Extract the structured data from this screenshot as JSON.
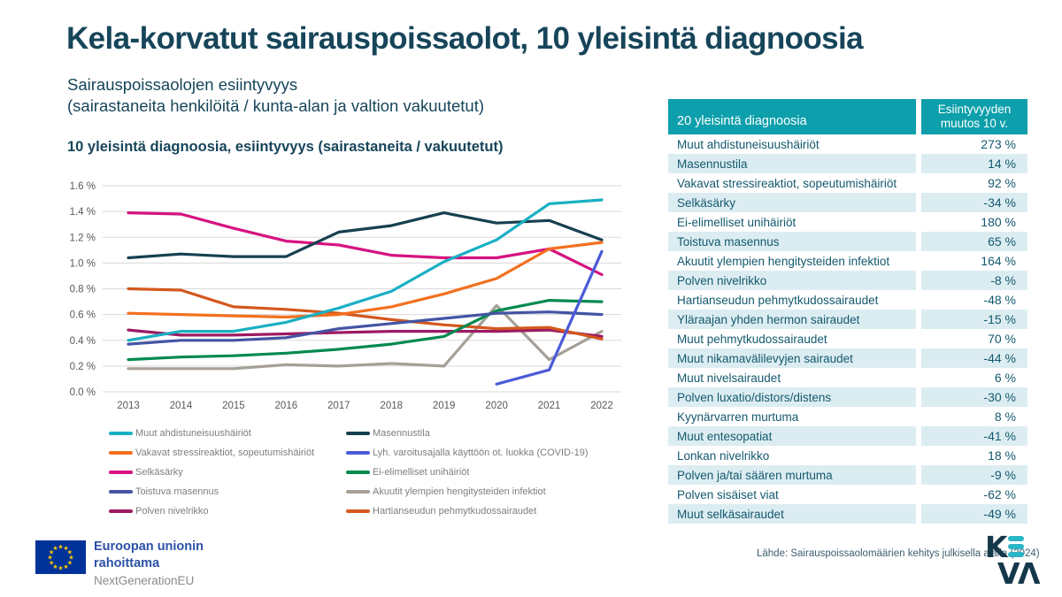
{
  "page": {
    "title": "Kela-korvatut sairauspoissaolot, 10 yleisintä diagnoosia",
    "subtitle_line1": "Sairauspoissaolojen esiintyvyys",
    "subtitle_line2": "(sairastaneita henkilöitä / kunta-alan ja valtion vakuutetut)"
  },
  "chart_data": {
    "type": "line",
    "title": "10 yleisintä diagnoosia, esiintyvyys (sairastaneita / vakuutetut)",
    "x": [
      2013,
      2014,
      2015,
      2016,
      2017,
      2018,
      2019,
      2020,
      2021,
      2022
    ],
    "ylim": [
      0,
      1.6
    ],
    "yticks": [
      0,
      0.2,
      0.4,
      0.6,
      0.8,
      1.0,
      1.2,
      1.4,
      1.6
    ],
    "ytick_labels": [
      "0.0 %",
      "0.2 %",
      "0.4 %",
      "0.6 %",
      "0.8 %",
      "1.0 %",
      "1.2 %",
      "1.4 %",
      "1.6 %"
    ],
    "grid": true,
    "legend_position": "bottom, two columns",
    "series": [
      {
        "name": "Muut ahdistuneisuushäiriöt",
        "color": "#1aafc3",
        "values": [
          0.4,
          0.47,
          0.47,
          0.54,
          0.65,
          0.78,
          1.01,
          1.18,
          1.46,
          1.49
        ]
      },
      {
        "name": "Masennustila",
        "color": "#16404f",
        "values": [
          1.04,
          1.07,
          1.05,
          1.05,
          1.24,
          1.29,
          1.39,
          1.31,
          1.33,
          1.18
        ]
      },
      {
        "name": "Vakavat stressireaktiot, sopeutumishäiriöt",
        "color": "#f3701e",
        "values": [
          0.61,
          0.6,
          0.59,
          0.58,
          0.6,
          0.66,
          0.76,
          0.88,
          1.11,
          1.16
        ]
      },
      {
        "name": "Lyh. varoitusajalla käyttöön ot. luokka (COVID-19)",
        "color": "#4b5bd7",
        "values": [
          null,
          null,
          null,
          null,
          null,
          null,
          null,
          0.06,
          0.17,
          1.09
        ]
      },
      {
        "name": "Selkäsärky",
        "color": "#d61280",
        "values": [
          1.39,
          1.38,
          1.27,
          1.17,
          1.14,
          1.06,
          1.04,
          1.04,
          1.11,
          0.91
        ]
      },
      {
        "name": "Ei-elimelliset unihäiriöt",
        "color": "#008a4e",
        "values": [
          0.25,
          0.27,
          0.28,
          0.3,
          0.33,
          0.37,
          0.43,
          0.63,
          0.71,
          0.7
        ]
      },
      {
        "name": "Toistuva masennus",
        "color": "#4454a4",
        "values": [
          0.37,
          0.4,
          0.4,
          0.42,
          0.49,
          0.53,
          0.57,
          0.61,
          0.62,
          0.6
        ]
      },
      {
        "name": "Akuutit ylempien hengitysteiden infektiot",
        "color": "#a5a096",
        "values": [
          0.18,
          0.18,
          0.18,
          0.21,
          0.2,
          0.22,
          0.2,
          0.67,
          0.25,
          0.47
        ]
      },
      {
        "name": "Polven nivelrikko",
        "color": "#9c1a62",
        "values": [
          0.48,
          0.44,
          0.44,
          0.45,
          0.46,
          0.47,
          0.47,
          0.47,
          0.48,
          0.43
        ]
      },
      {
        "name": "Hartianseudun pehmytkudossairaudet",
        "color": "#d4581e",
        "values": [
          0.8,
          0.79,
          0.66,
          0.64,
          0.61,
          0.56,
          0.52,
          0.49,
          0.5,
          0.41
        ]
      }
    ]
  },
  "table": {
    "header_col1": "20 yleisintä diagnoosia",
    "header_col2": "Esiintyvyyden muutos 10 v.",
    "rows": [
      {
        "diagnosis": "Muut ahdistuneisuushäiriöt",
        "change": "273 %"
      },
      {
        "diagnosis": "Masennustila",
        "change": "14 %"
      },
      {
        "diagnosis": "Vakavat stressireaktiot, sopeutumishäiriöt",
        "change": "92 %"
      },
      {
        "diagnosis": "Selkäsärky",
        "change": "-34 %"
      },
      {
        "diagnosis": "Ei-elimelliset unihäiriöt",
        "change": "180 %"
      },
      {
        "diagnosis": "Toistuva masennus",
        "change": "65 %"
      },
      {
        "diagnosis": "Akuutit ylempien hengitysteiden infektiot",
        "change": "164 %"
      },
      {
        "diagnosis": "Polven nivelrikko",
        "change": "-8 %"
      },
      {
        "diagnosis": "Hartianseudun pehmytkudossairaudet",
        "change": "-48 %"
      },
      {
        "diagnosis": "Yläraajan yhden hermon sairaudet",
        "change": "-15 %"
      },
      {
        "diagnosis": "Muut pehmytkudossairaudet",
        "change": "70 %"
      },
      {
        "diagnosis": "Muut nikamavälilevyjen sairaudet",
        "change": "-44 %"
      },
      {
        "diagnosis": "Muut nivelsairaudet",
        "change": "6 %"
      },
      {
        "diagnosis": "Polven luxatio/distors/distens",
        "change": "-30 %"
      },
      {
        "diagnosis": "Kyynärvarren murtuma",
        "change": "8 %"
      },
      {
        "diagnosis": "Muut entesopatiat",
        "change": "-41 %"
      },
      {
        "diagnosis": "Lonkan nivelrikko",
        "change": "18 %"
      },
      {
        "diagnosis": "Polven ja/tai säären murtuma",
        "change": "-9 %"
      },
      {
        "diagnosis": "Polven sisäiset viat",
        "change": "-62 %"
      },
      {
        "diagnosis": "Muut selkäsairaudet",
        "change": "-49 %"
      }
    ]
  },
  "footer": {
    "eu_line1": "Euroopan unionin",
    "eu_line2": "rahoittama",
    "eu_line3": "NextGenerationEU",
    "source": "Lähde: Sairauspoissaolomäärien kehitys julkisella alalla (2024)",
    "logo_text": "KEVA"
  },
  "colors": {
    "title_navy": "#17455a",
    "table_header_teal": "#0d9fab",
    "table_stripe": "#dcedf2",
    "table_text": "#14596e",
    "axis_text": "#595959",
    "gridline": "#dadada",
    "legend_text": "#7e7e7e",
    "eu_blue": "#003399",
    "eu_star_yellow": "#ffcc00",
    "keva_navy": "#14384a",
    "keva_teal": "#2bb5c6"
  }
}
